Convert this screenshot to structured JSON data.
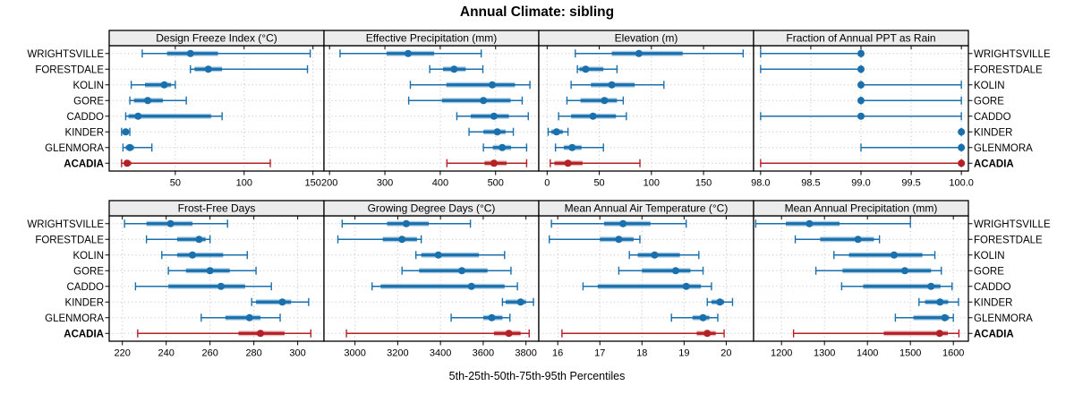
{
  "chart_data": {
    "type": "scatter",
    "subtype": "lattice-percentile-interval-dotplot",
    "title": "Annual Climate: sibling",
    "xlabel": "5th-25th-50th-75th-95th Percentiles",
    "ylabel": "",
    "grid": "dotted",
    "legend": "none",
    "highlight": "ACADIA",
    "percentile_order": [
      5,
      25,
      50,
      75,
      95
    ],
    "categories": [
      "WRIGHTSVILLE",
      "FORESTDALE",
      "KOLIN",
      "GORE",
      "CADDO",
      "KINDER",
      "GLENMORA",
      "ACADIA"
    ],
    "panels": [
      {
        "title": "Design Freeze Index (°C)",
        "xlim": [
          2,
          158
        ],
        "ticks": [
          "50",
          "100",
          "150"
        ],
        "series": [
          {
            "name": "WRIGHTSVILLE",
            "values": [
              26,
              44,
              61,
              81,
              148
            ]
          },
          {
            "name": "FORESTDALE",
            "values": [
              61,
              64,
              74,
              84,
              146
            ]
          },
          {
            "name": "KOLIN",
            "values": [
              18,
              28,
              42,
              47,
              50
            ]
          },
          {
            "name": "GORE",
            "values": [
              17,
              20,
              30,
              41,
              58
            ]
          },
          {
            "name": "CADDO",
            "values": [
              14,
              16,
              23,
              76,
              84
            ]
          },
          {
            "name": "KINDER",
            "values": [
              11,
              12,
              14,
              16,
              17
            ]
          },
          {
            "name": "GLENMORA",
            "values": [
              12,
              14,
              17,
              20,
              33
            ]
          },
          {
            "name": "ACADIA",
            "values": [
              11,
              13,
              15,
              18,
              119
            ]
          }
        ]
      },
      {
        "title": "Effective Precipitation (mm)",
        "xlim": [
          190,
          578
        ],
        "ticks": [
          "200",
          "300",
          "400",
          "500"
        ],
        "series": [
          {
            "name": "WRIGHTSVILLE",
            "values": [
              219,
              303,
              342,
              389,
              474
            ]
          },
          {
            "name": "FORESTDALE",
            "values": [
              381,
              405,
              425,
              446,
              477
            ]
          },
          {
            "name": "KOLIN",
            "values": [
              346,
              411,
              494,
              535,
              562
            ]
          },
          {
            "name": "GORE",
            "values": [
              343,
              403,
              478,
              527,
              548
            ]
          },
          {
            "name": "CADDO",
            "values": [
              430,
              455,
              497,
              524,
              559
            ]
          },
          {
            "name": "KINDER",
            "values": [
              452,
              478,
              503,
              518,
              532
            ]
          },
          {
            "name": "GLENMORA",
            "values": [
              478,
              495,
              512,
              528,
              556
            ]
          },
          {
            "name": "ACADIA",
            "values": [
              412,
              480,
              497,
              520,
              556
            ]
          }
        ]
      },
      {
        "title": "Elevation (m)",
        "xlim": [
          -8,
          198
        ],
        "ticks": [
          "0",
          "50",
          "100",
          "150"
        ],
        "series": [
          {
            "name": "WRIGHTSVILLE",
            "values": [
              27,
              62,
              88,
              130,
              188
            ]
          },
          {
            "name": "FORESTDALE",
            "values": [
              29,
              31,
              37,
              54,
              67
            ]
          },
          {
            "name": "KOLIN",
            "values": [
              23,
              42,
              62,
              84,
              112
            ]
          },
          {
            "name": "GORE",
            "values": [
              19,
              32,
              55,
              67,
              73
            ]
          },
          {
            "name": "CADDO",
            "values": [
              11,
              23,
              44,
              66,
              76
            ]
          },
          {
            "name": "KINDER",
            "values": [
              1,
              4,
              9,
              15,
              20
            ]
          },
          {
            "name": "GLENMORA",
            "values": [
              8,
              16,
              24,
              33,
              54
            ]
          },
          {
            "name": "ACADIA",
            "values": [
              3,
              7,
              20,
              34,
              89
            ]
          }
        ]
      },
      {
        "title": "Fraction of Annual PPT as Rain",
        "xlim": [
          97.93,
          100.07
        ],
        "ticks": [
          "98.0",
          "98.5",
          "99.0",
          "99.5",
          "100.0"
        ],
        "series": [
          {
            "name": "WRIGHTSVILLE",
            "values": [
              98,
              99,
              99,
              99,
              99
            ]
          },
          {
            "name": "FORESTDALE",
            "values": [
              98,
              99,
              99,
              99,
              99
            ]
          },
          {
            "name": "KOLIN",
            "values": [
              99,
              99,
              99,
              99,
              100
            ]
          },
          {
            "name": "GORE",
            "values": [
              99,
              99,
              99,
              99,
              100
            ]
          },
          {
            "name": "CADDO",
            "values": [
              98,
              99,
              99,
              99,
              100
            ]
          },
          {
            "name": "KINDER",
            "values": [
              100,
              100,
              100,
              100,
              100
            ]
          },
          {
            "name": "GLENMORA",
            "values": [
              99,
              100,
              100,
              100,
              100
            ]
          },
          {
            "name": "ACADIA",
            "values": [
              98,
              100,
              100,
              100,
              100
            ]
          }
        ]
      },
      {
        "title": "Frost-Free Days",
        "xlim": [
          214,
          312
        ],
        "ticks": [
          "220",
          "240",
          "260",
          "280",
          "300"
        ],
        "series": [
          {
            "name": "WRIGHTSVILLE",
            "values": [
              221,
              231,
              242,
              252,
              268
            ]
          },
          {
            "name": "FORESTDALE",
            "values": [
              231,
              245,
              255,
              258,
              260
            ]
          },
          {
            "name": "KOLIN",
            "values": [
              238,
              245,
              252,
              266,
              277
            ]
          },
          {
            "name": "GORE",
            "values": [
              241,
              249,
              260,
              269,
              281
            ]
          },
          {
            "name": "CADDO",
            "values": [
              226,
              241,
              265,
              276,
              288
            ]
          },
          {
            "name": "KINDER",
            "values": [
              279,
              281,
              293,
              297,
              305
            ]
          },
          {
            "name": "GLENMORA",
            "values": [
              256,
              267,
              278,
              283,
              292
            ]
          },
          {
            "name": "ACADIA",
            "values": [
              227,
              273,
              283,
              294,
              306
            ]
          }
        ]
      },
      {
        "title": "Growing Degree Days (°C)",
        "xlim": [
          2855,
          3860
        ],
        "ticks": [
          "3000",
          "3200",
          "3400",
          "3600",
          "3800"
        ],
        "series": [
          {
            "name": "WRIGHTSVILLE",
            "values": [
              2940,
              3150,
              3240,
              3345,
              3540
            ]
          },
          {
            "name": "FORESTDALE",
            "values": [
              2920,
              3130,
              3220,
              3290,
              3310
            ]
          },
          {
            "name": "KOLIN",
            "values": [
              3285,
              3310,
              3390,
              3580,
              3700
            ]
          },
          {
            "name": "GORE",
            "values": [
              3220,
              3300,
              3500,
              3620,
              3730
            ]
          },
          {
            "name": "CADDO",
            "values": [
              3080,
              3120,
              3545,
              3700,
              3760
            ]
          },
          {
            "name": "KINDER",
            "values": [
              3690,
              3705,
              3775,
              3800,
              3835
            ]
          },
          {
            "name": "GLENMORA",
            "values": [
              3450,
              3600,
              3640,
              3690,
              3725
            ]
          },
          {
            "name": "ACADIA",
            "values": [
              2960,
              3650,
              3720,
              3775,
              3815
            ]
          }
        ]
      },
      {
        "title": "Mean Annual Air Temperature (°C)",
        "xlim": [
          15.55,
          20.65
        ],
        "ticks": [
          "16",
          "17",
          "18",
          "19",
          "20"
        ],
        "series": [
          {
            "name": "WRIGHTSVILLE",
            "values": [
              15.85,
              17.1,
              17.55,
              18.2,
              19.05
            ]
          },
          {
            "name": "FORESTDALE",
            "values": [
              15.8,
              17.0,
              17.45,
              17.8,
              17.95
            ]
          },
          {
            "name": "KOLIN",
            "values": [
              17.7,
              17.9,
              18.3,
              18.9,
              19.35
            ]
          },
          {
            "name": "GORE",
            "values": [
              17.45,
              18.0,
              18.8,
              19.15,
              19.45
            ]
          },
          {
            "name": "CADDO",
            "values": [
              16.6,
              16.95,
              19.05,
              19.4,
              19.65
            ]
          },
          {
            "name": "KINDER",
            "values": [
              19.55,
              19.65,
              19.85,
              19.95,
              20.15
            ]
          },
          {
            "name": "GLENMORA",
            "values": [
              18.7,
              19.2,
              19.45,
              19.6,
              19.8
            ]
          },
          {
            "name": "ACADIA",
            "values": [
              16.1,
              19.3,
              19.55,
              19.75,
              19.95
            ]
          }
        ]
      },
      {
        "title": "Mean Annual Precipitation (mm)",
        "xlim": [
          1135,
          1635
        ],
        "ticks": [
          "1200",
          "1300",
          "1400",
          "1500",
          "1600"
        ],
        "series": [
          {
            "name": "WRIGHTSVILLE",
            "values": [
              1140,
              1210,
              1265,
              1335,
              1500
            ]
          },
          {
            "name": "FORESTDALE",
            "values": [
              1232,
              1290,
              1378,
              1415,
              1428
            ]
          },
          {
            "name": "KOLIN",
            "values": [
              1322,
              1357,
              1462,
              1528,
              1557
            ]
          },
          {
            "name": "GORE",
            "values": [
              1280,
              1342,
              1487,
              1548,
              1572
            ]
          },
          {
            "name": "CADDO",
            "values": [
              1340,
              1390,
              1548,
              1570,
              1597
            ]
          },
          {
            "name": "KINDER",
            "values": [
              1520,
              1534,
              1569,
              1588,
              1612
            ]
          },
          {
            "name": "GLENMORA",
            "values": [
              1465,
              1507,
              1580,
              1590,
              1600
            ]
          },
          {
            "name": "ACADIA",
            "values": [
              1228,
              1438,
              1568,
              1587,
              1613
            ]
          }
        ]
      }
    ]
  },
  "colors": {
    "series": "#1a6fad",
    "series_light": "#8ab9d8",
    "highlight": "#b32025",
    "highlight_light": "#e0a4a4",
    "strip_bg": "#ececec",
    "grid": "#c8c8c8",
    "border": "#000000",
    "background": "#ffffff"
  }
}
